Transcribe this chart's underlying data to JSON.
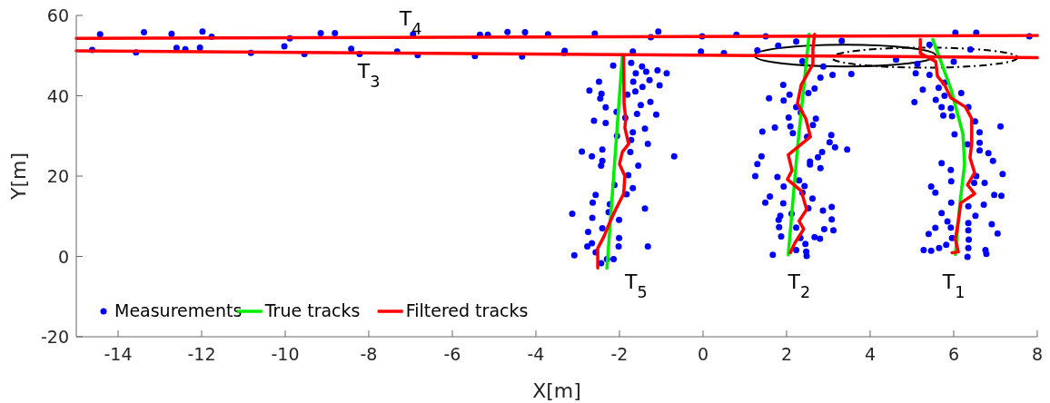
{
  "chart_data": {
    "type": "scatter",
    "xlabel": "X[m]",
    "ylabel": "Y[m]",
    "xlim": [
      -15,
      8
    ],
    "xticks": [
      -14,
      -12,
      -10,
      -8,
      -6,
      -4,
      -2,
      0,
      2,
      4,
      6,
      8
    ],
    "ylim": [
      -20,
      60
    ],
    "yticks": [
      -20,
      0,
      20,
      40,
      60
    ],
    "grid": false,
    "legend": "bottom left",
    "annotations": [
      "T$_{4}$",
      "T$_{3}$",
      "T$_{5}$",
      "T$_{2}$",
      "T$_{1}$"
    ],
    "series": [
      {
        "name": "Measurements",
        "marker": "circle",
        "color": "#0000ff",
        "x": [
          -2.15,
          -1.72,
          -1.46,
          -1.61,
          -1.36,
          -1.09,
          -0.87,
          -2.49,
          -1.67,
          -1.28,
          -1.45,
          -1.04,
          -2.72,
          -2.43,
          -2.46,
          -1.62,
          -1.81,
          -1.26,
          -1.49,
          -2.33,
          -2.07,
          -1.58,
          -1.12,
          -2.61,
          -2.33,
          -1.86,
          -1.39,
          -1.68,
          -2.06,
          -1.72,
          -1.32,
          -2.9,
          -2.41,
          -1.74,
          -0.69,
          -2.66,
          -2.41,
          -1.55,
          -2.44,
          -1.79,
          -2.12,
          -1.68,
          -1.83,
          -2.57,
          -2.64,
          -2.23,
          -1.39,
          -3.13,
          -2.26,
          -2.65,
          -2.01,
          -2.41,
          -2.75,
          -2.01,
          -2.66,
          -2.77,
          -2.02,
          -1.32,
          -2.57,
          -3.08,
          -2.3,
          -2.14,
          -2.44,
          2.23,
          3.32,
          1.8,
          2.38,
          2.88,
          3.1,
          3.55,
          2.81,
          1.92,
          2.67,
          2.07,
          1.58,
          1.93,
          2.52,
          2.23,
          2.34,
          2.05,
          2.7,
          1.72,
          2.09,
          2.63,
          1.42,
          2.15,
          2.49,
          3.07,
          3.03,
          3.16,
          3.45,
          2.85,
          1.4,
          2.75,
          2.56,
          1.3,
          2.56,
          2.81,
          1.25,
          1.78,
          2.3,
          1.93,
          2.43,
          2.38,
          1.6,
          2.62,
          1.49,
          1.92,
          2.52,
          3.08,
          1.85,
          2.87,
          2.12,
          1.81,
          3.08,
          1.82,
          2.23,
          2.9,
          3.12,
          1.87,
          2.33,
          2.67,
          2.8,
          2.45,
          2.23,
          1.67,
          2.47,
          2.48,
          5.42,
          6.4,
          4.62,
          5.13,
          6.0,
          5.09,
          5.42,
          5.26,
          5.78,
          5.64,
          6.18,
          5.06,
          5.57,
          5.78,
          5.71,
          5.93,
          6.35,
          5.75,
          5.96,
          7.12,
          6.51,
          6.02,
          6.62,
          6.62,
          6.33,
          6.83,
          6.62,
          6.94,
          5.71,
          5.93,
          6.54,
          7.17,
          5.46,
          5.94,
          6.49,
          6.74,
          5.56,
          6.97,
          7.14,
          5.94,
          6.35,
          6.72,
          5.71,
          6.52,
          5.85,
          6.35,
          6.91,
          5.56,
          5.93,
          6.35,
          5.4,
          7.05,
          5.96,
          5.82,
          5.65,
          6.36,
          5.28,
          5.46,
          6.35,
          6.76,
          6.78,
          6.33,
          -14.43,
          -13.38,
          -12.72,
          -11.98,
          -11.76,
          -9.89,
          -9.15,
          -8.81,
          -6.94,
          -5.34,
          -5.15,
          -4.68,
          -4.26,
          -3.71,
          -2.59,
          -1.25,
          -1.07,
          -0.02,
          0.8,
          1.5,
          6.04,
          6.54,
          7.81,
          -14.62,
          -13.57,
          -12.6,
          -12.39,
          -12.04,
          -10.82,
          -10.02,
          -9.54,
          -8.42,
          -8.22,
          -7.32,
          -6.83,
          -5.46,
          -4.33,
          -3.32,
          -3.31,
          -1.68,
          -0.05,
          0.5,
          1.3
        ],
        "values": [
          47.5,
          48.2,
          47.3,
          45.6,
          46.0,
          46.3,
          45.6,
          43.5,
          43.5,
          43.9,
          42.2,
          42.6,
          41.3,
          40.5,
          39.3,
          41.1,
          40.3,
          38.5,
          37.7,
          37.1,
          36.0,
          35.5,
          35.3,
          33.8,
          33.2,
          34.5,
          31.8,
          30.9,
          30.0,
          29.0,
          28.0,
          26.1,
          26.6,
          26.0,
          24.9,
          24.9,
          23.8,
          22.6,
          22.6,
          20.2,
          17.8,
          17.0,
          15.5,
          15.3,
          13.4,
          13.0,
          11.9,
          10.6,
          11.0,
          9.6,
          9.1,
          7.0,
          6.1,
          4.6,
          3.3,
          2.5,
          2.5,
          2.5,
          1.0,
          0.3,
          -0.7,
          -0.7,
          -1.7,
          53.5,
          53.7,
          52.5,
          48.6,
          47.3,
          45.2,
          45.4,
          44.5,
          42.7,
          41.8,
          40.3,
          39.4,
          38.8,
          40.7,
          37.2,
          35.8,
          34.6,
          34.3,
          32.1,
          32.4,
          32.7,
          31.1,
          30.7,
          29.8,
          30.2,
          28.4,
          27.2,
          26.6,
          26.0,
          24.9,
          24.7,
          23.6,
          23.0,
          22.9,
          22.0,
          20.0,
          19.8,
          18.9,
          17.4,
          17.5,
          15.9,
          14.9,
          14.4,
          13.4,
          13.2,
          12.0,
          12.3,
          10.1,
          11.4,
          10.6,
          9.1,
          9.2,
          7.3,
          7.2,
          6.8,
          6.5,
          5.0,
          4.6,
          4.8,
          4.4,
          3.1,
          1.6,
          0.4,
          1.2,
          0.1,
          52.7,
          51.5,
          49.0,
          47.9,
          48.5,
          45.6,
          45.2,
          41.5,
          43.3,
          42.0,
          40.7,
          38.4,
          39.0,
          40.0,
          37.2,
          36.9,
          37.2,
          35.1,
          34.9,
          32.4,
          33.6,
          30.4,
          30.9,
          28.3,
          27.9,
          25.7,
          26.4,
          23.8,
          23.2,
          21.5,
          20.0,
          20.5,
          17.4,
          18.7,
          18.3,
          18.3,
          15.9,
          15.3,
          15.1,
          13.4,
          12.5,
          12.9,
          10.8,
          10.1,
          8.7,
          8.3,
          8.0,
          7.1,
          7.2,
          6.5,
          5.6,
          5.7,
          4.6,
          2.9,
          2.1,
          4.2,
          1.6,
          1.4,
          2.1,
          1.6,
          0.6,
          -0.1,
          55.3,
          55.8,
          55.4,
          56.0,
          54.7,
          54.3,
          55.6,
          55.6,
          55.3,
          55.2,
          55.2,
          55.9,
          55.8,
          55.3,
          55.5,
          54.6,
          56.0,
          54.8,
          55.2,
          54.8,
          55.7,
          55.7,
          54.8,
          51.4,
          50.8,
          51.9,
          51.6,
          52.0,
          50.7,
          52.3,
          50.4,
          51.7,
          50.4,
          51.0,
          50.1,
          49.9,
          49.8,
          50.7,
          51.2,
          51.0,
          51.0,
          50.6,
          51.3
        ]
      },
      {
        "name": "True tracks",
        "type": "line",
        "marker": "none",
        "line_style": "solid",
        "color": "#00ee00",
        "x": [
          -1.93,
          -2.3
        ],
        "values": [
          50,
          -2.9
        ]
      },
      {
        "type": "line",
        "marker": "none",
        "line_style": "solid",
        "color": "#00ee00",
        "x": [
          2.54,
          2.26,
          2.04
        ],
        "values": [
          55.3,
          26.9,
          0.4
        ]
      },
      {
        "type": "line",
        "marker": "none",
        "line_style": "solid",
        "color": "#00ee00",
        "x": [
          5.5,
          5.93,
          6.22,
          6.26,
          6.15,
          6.04
        ],
        "values": [
          54,
          41.8,
          30.5,
          23,
          13.3,
          0.5
        ]
      },
      {
        "name": "Filtered tracks",
        "type": "line",
        "marker": "none",
        "line_style": "solid",
        "color": "#ff0000",
        "x": [
          -15,
          8
        ],
        "values": [
          54.3,
          55.0
        ]
      },
      {
        "type": "line",
        "marker": "none",
        "line_style": "solid",
        "color": "#ff0000",
        "x": [
          -15,
          8
        ],
        "values": [
          51.2,
          49.5
        ]
      },
      {
        "type": "line",
        "marker": "none",
        "line_style": "solid",
        "color": "#ff0000",
        "x": [
          -1.9,
          -1.89,
          -1.85,
          -1.87,
          -1.78,
          -1.93,
          -2.0,
          -1.87,
          -1.9,
          -2.09,
          -2.22,
          -2.37,
          -2.52,
          -2.52,
          -2.52
        ],
        "values": [
          50,
          38,
          34.3,
          32,
          28,
          26,
          23,
          20,
          15.6,
          11.7,
          8.8,
          5,
          2,
          -0.2,
          -2.9
        ]
      },
      {
        "type": "line",
        "marker": "none",
        "line_style": "solid",
        "color": "#ff0000",
        "x": [
          2.67,
          2.63,
          2.63,
          2.35,
          2.26,
          2.46,
          2.57,
          2.04,
          2.13,
          2.02,
          2.35,
          2.48,
          2.3,
          2.41,
          2.2,
          2.09
        ],
        "values": [
          55.3,
          51.7,
          47.9,
          42.7,
          38.1,
          34.3,
          29.8,
          25.3,
          21.4,
          19.2,
          16.3,
          11.7,
          8.8,
          6.8,
          3.4,
          0.9
        ]
      },
      {
        "type": "line",
        "marker": "none",
        "line_style": "solid",
        "color": "#ff0000",
        "x": [
          5.2,
          5.2,
          5.57,
          5.61,
          5.78,
          5.93,
          6.28,
          6.43,
          6.43,
          6.39,
          6.5,
          6.33,
          6.5,
          6.17,
          6.11,
          6.04,
          6.11,
          5.96
        ],
        "values": [
          54,
          50.6,
          48.5,
          44.9,
          42.7,
          39.5,
          37.2,
          34.3,
          28.2,
          24.6,
          20.8,
          17.8,
          15.6,
          13.3,
          8.8,
          4.3,
          1.1,
          0.9
        ]
      }
    ]
  }
}
